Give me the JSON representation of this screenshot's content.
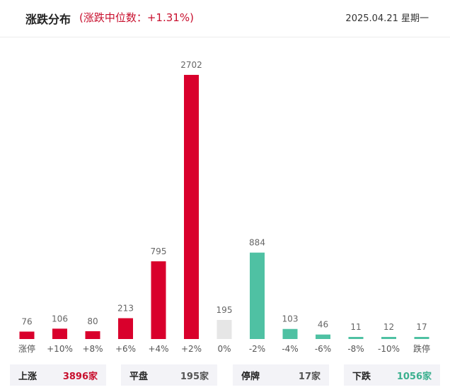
{
  "header": {
    "title": "涨跌分布",
    "subtitle": "(涨跌中位数：+1.31%)",
    "date": "2025.04.21 星期一"
  },
  "chart_data": {
    "type": "bar",
    "categories": [
      "涨停",
      "+10%",
      "+8%",
      "+6%",
      "+4%",
      "+2%",
      "0%",
      "-2%",
      "-4%",
      "-6%",
      "-8%",
      "-10%",
      "跌停"
    ],
    "values": [
      76,
      106,
      80,
      213,
      795,
      2702,
      195,
      884,
      103,
      46,
      11,
      12,
      17
    ],
    "colors": [
      "#d9002c",
      "#d9002c",
      "#d9002c",
      "#d9002c",
      "#d9002c",
      "#d9002c",
      "#e6e6e6",
      "#4fc1a3",
      "#4fc1a3",
      "#4fc1a3",
      "#4fc1a3",
      "#4fc1a3",
      "#4fc1a3"
    ],
    "ylim": [
      0,
      2702
    ],
    "grid": false
  },
  "summary": [
    {
      "name": "上涨",
      "value": "3896家",
      "color": "#c8102e"
    },
    {
      "name": "平盘",
      "value": "195家",
      "color": "#555555"
    },
    {
      "name": "停牌",
      "value": "17家",
      "color": "#555555"
    },
    {
      "name": "下跌",
      "value": "1056家",
      "color": "#3cb08f"
    }
  ]
}
